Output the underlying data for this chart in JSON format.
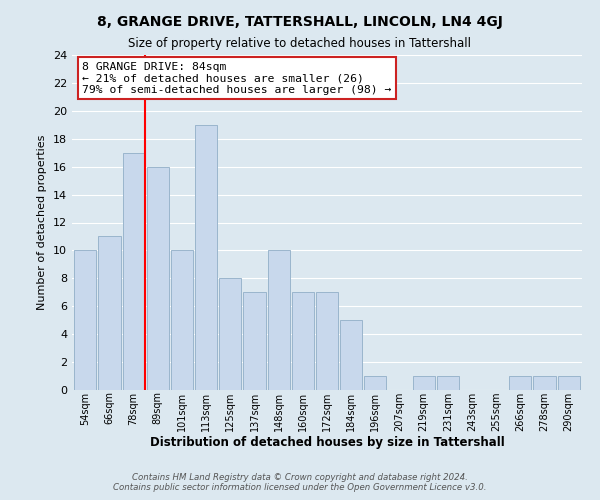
{
  "title": "8, GRANGE DRIVE, TATTERSHALL, LINCOLN, LN4 4GJ",
  "subtitle": "Size of property relative to detached houses in Tattershall",
  "xlabel": "Distribution of detached houses by size in Tattershall",
  "ylabel": "Number of detached properties",
  "bar_color": "#c8d8ec",
  "bar_edge_color": "#9ab5cc",
  "grid_color": "#ffffff",
  "bg_color": "#dce8f0",
  "fig_color": "#dce8f0",
  "bin_labels": [
    "54sqm",
    "66sqm",
    "78sqm",
    "89sqm",
    "101sqm",
    "113sqm",
    "125sqm",
    "137sqm",
    "148sqm",
    "160sqm",
    "172sqm",
    "184sqm",
    "196sqm",
    "207sqm",
    "219sqm",
    "231sqm",
    "243sqm",
    "255sqm",
    "266sqm",
    "278sqm",
    "290sqm"
  ],
  "bar_heights": [
    10,
    11,
    17,
    16,
    10,
    19,
    8,
    7,
    10,
    7,
    7,
    5,
    1,
    0,
    1,
    1,
    0,
    0,
    1,
    1,
    1
  ],
  "ylim": [
    0,
    24
  ],
  "yticks": [
    0,
    2,
    4,
    6,
    8,
    10,
    12,
    14,
    16,
    18,
    20,
    22,
    24
  ],
  "red_line_index": 2,
  "annotation_title": "8 GRANGE DRIVE: 84sqm",
  "annotation_line1": "← 21% of detached houses are smaller (26)",
  "annotation_line2": "79% of semi-detached houses are larger (98) →",
  "footer1": "Contains HM Land Registry data © Crown copyright and database right 2024.",
  "footer2": "Contains public sector information licensed under the Open Government Licence v3.0."
}
